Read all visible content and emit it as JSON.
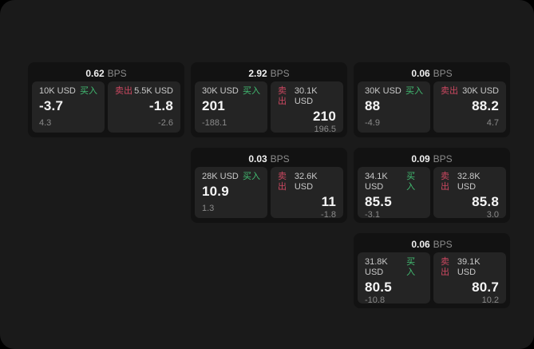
{
  "colors": {
    "buy_green": "#42bd72",
    "sell_red": "#cc4861",
    "container_bg": "#1a1a1a",
    "card_bg": "#121212",
    "panel_bg": "#242424"
  },
  "cards": [
    {
      "bps_value": "0.62",
      "bps_unit": "BPS",
      "buy": {
        "amount": "10K USD",
        "side_label": "买入",
        "value": "-3.7",
        "delta": "4.3"
      },
      "sell": {
        "side_label": "卖出",
        "amount": "5.5K USD",
        "value": "-1.8",
        "delta": "-2.6"
      }
    },
    {
      "bps_value": "2.92",
      "bps_unit": "BPS",
      "buy": {
        "amount": "30K USD",
        "side_label": "买入",
        "value": "201",
        "delta": "-188.1"
      },
      "sell": {
        "side_label": "卖出",
        "amount": "30.1K USD",
        "value": "210",
        "delta": "196.5"
      }
    },
    {
      "bps_value": "0.06",
      "bps_unit": "BPS",
      "buy": {
        "amount": "30K USD",
        "side_label": "买入",
        "value": "88",
        "delta": "-4.9"
      },
      "sell": {
        "side_label": "卖出",
        "amount": "30K USD",
        "value": "88.2",
        "delta": "4.7"
      }
    },
    {
      "bps_value": "0.03",
      "bps_unit": "BPS",
      "buy": {
        "amount": "28K USD",
        "side_label": "买入",
        "value": "10.9",
        "delta": "1.3"
      },
      "sell": {
        "side_label": "卖出",
        "amount": "32.6K USD",
        "value": "11",
        "delta": "-1.8"
      }
    },
    {
      "bps_value": "0.09",
      "bps_unit": "BPS",
      "buy": {
        "amount": "34.1K USD",
        "side_label": "买入",
        "value": "85.5",
        "delta": "-3.1"
      },
      "sell": {
        "side_label": "卖出",
        "amount": "32.8K USD",
        "value": "85.8",
        "delta": "3.0"
      }
    },
    {
      "bps_value": "0.06",
      "bps_unit": "BPS",
      "buy": {
        "amount": "31.8K USD",
        "side_label": "买入",
        "value": "80.5",
        "delta": "-10.8"
      },
      "sell": {
        "side_label": "卖出",
        "amount": "39.1K USD",
        "value": "80.7",
        "delta": "10.2"
      }
    }
  ]
}
